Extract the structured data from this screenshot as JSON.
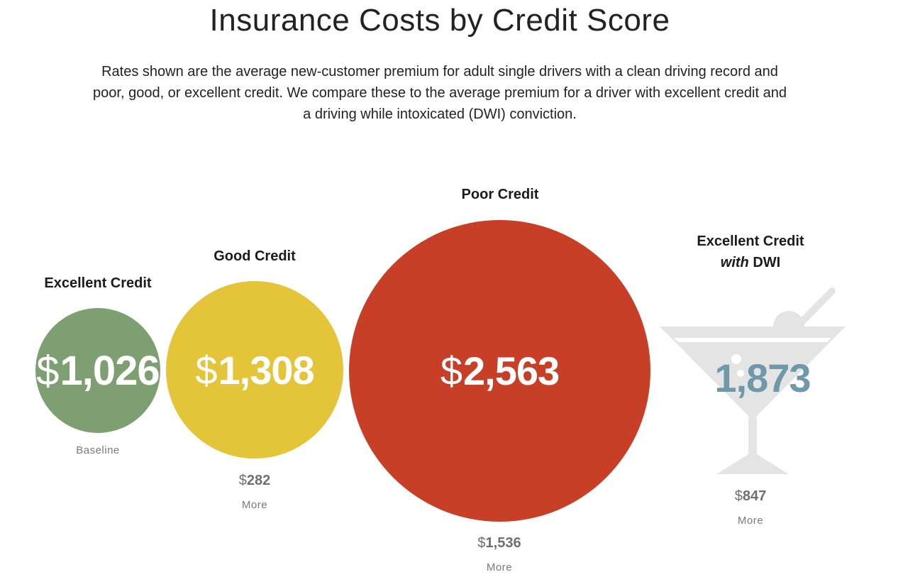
{
  "title": "Insurance Costs by Credit Score",
  "subtitle": "Rates shown are the average new-customer premium for adult single drivers with a clean driving record and poor, good, or excellent credit. We compare these to the average premium for a driver with excellent credit and a driving while intoxicated (DWI) conviction.",
  "currency_symbol": "$",
  "colors": {
    "excellent": "#7d9f72",
    "good": "#e4c53a",
    "poor": "#c83f27",
    "dwi_glass": "#e4e4e4",
    "dwi_value": "#6f98aa"
  },
  "categories": {
    "excellent": {
      "label": "Excellent Credit",
      "value_text": "1,026",
      "note": "Baseline"
    },
    "good": {
      "label": "Good Credit",
      "value_text": "1,308",
      "diff_text": "282",
      "note": "More"
    },
    "poor": {
      "label": "Poor Credit",
      "value_text": "2,563",
      "diff_text": "1,536",
      "note": "More"
    },
    "dwi": {
      "label_line1": "Excellent Credit",
      "label_italic": "with",
      "label_rest": "DWI",
      "value_text": "1,873",
      "diff_text": "847",
      "note": "More",
      "icon": "martini-glass-icon"
    }
  },
  "chart_data": {
    "type": "bubble",
    "title": "Insurance Costs by Credit Score",
    "categories": [
      "Excellent Credit",
      "Good Credit",
      "Poor Credit",
      "Excellent Credit with DWI"
    ],
    "values": [
      1026,
      1308,
      2563,
      1873
    ],
    "difference_vs_baseline": [
      0,
      282,
      1536,
      847
    ],
    "baseline": "Excellent Credit",
    "unit": "$"
  }
}
